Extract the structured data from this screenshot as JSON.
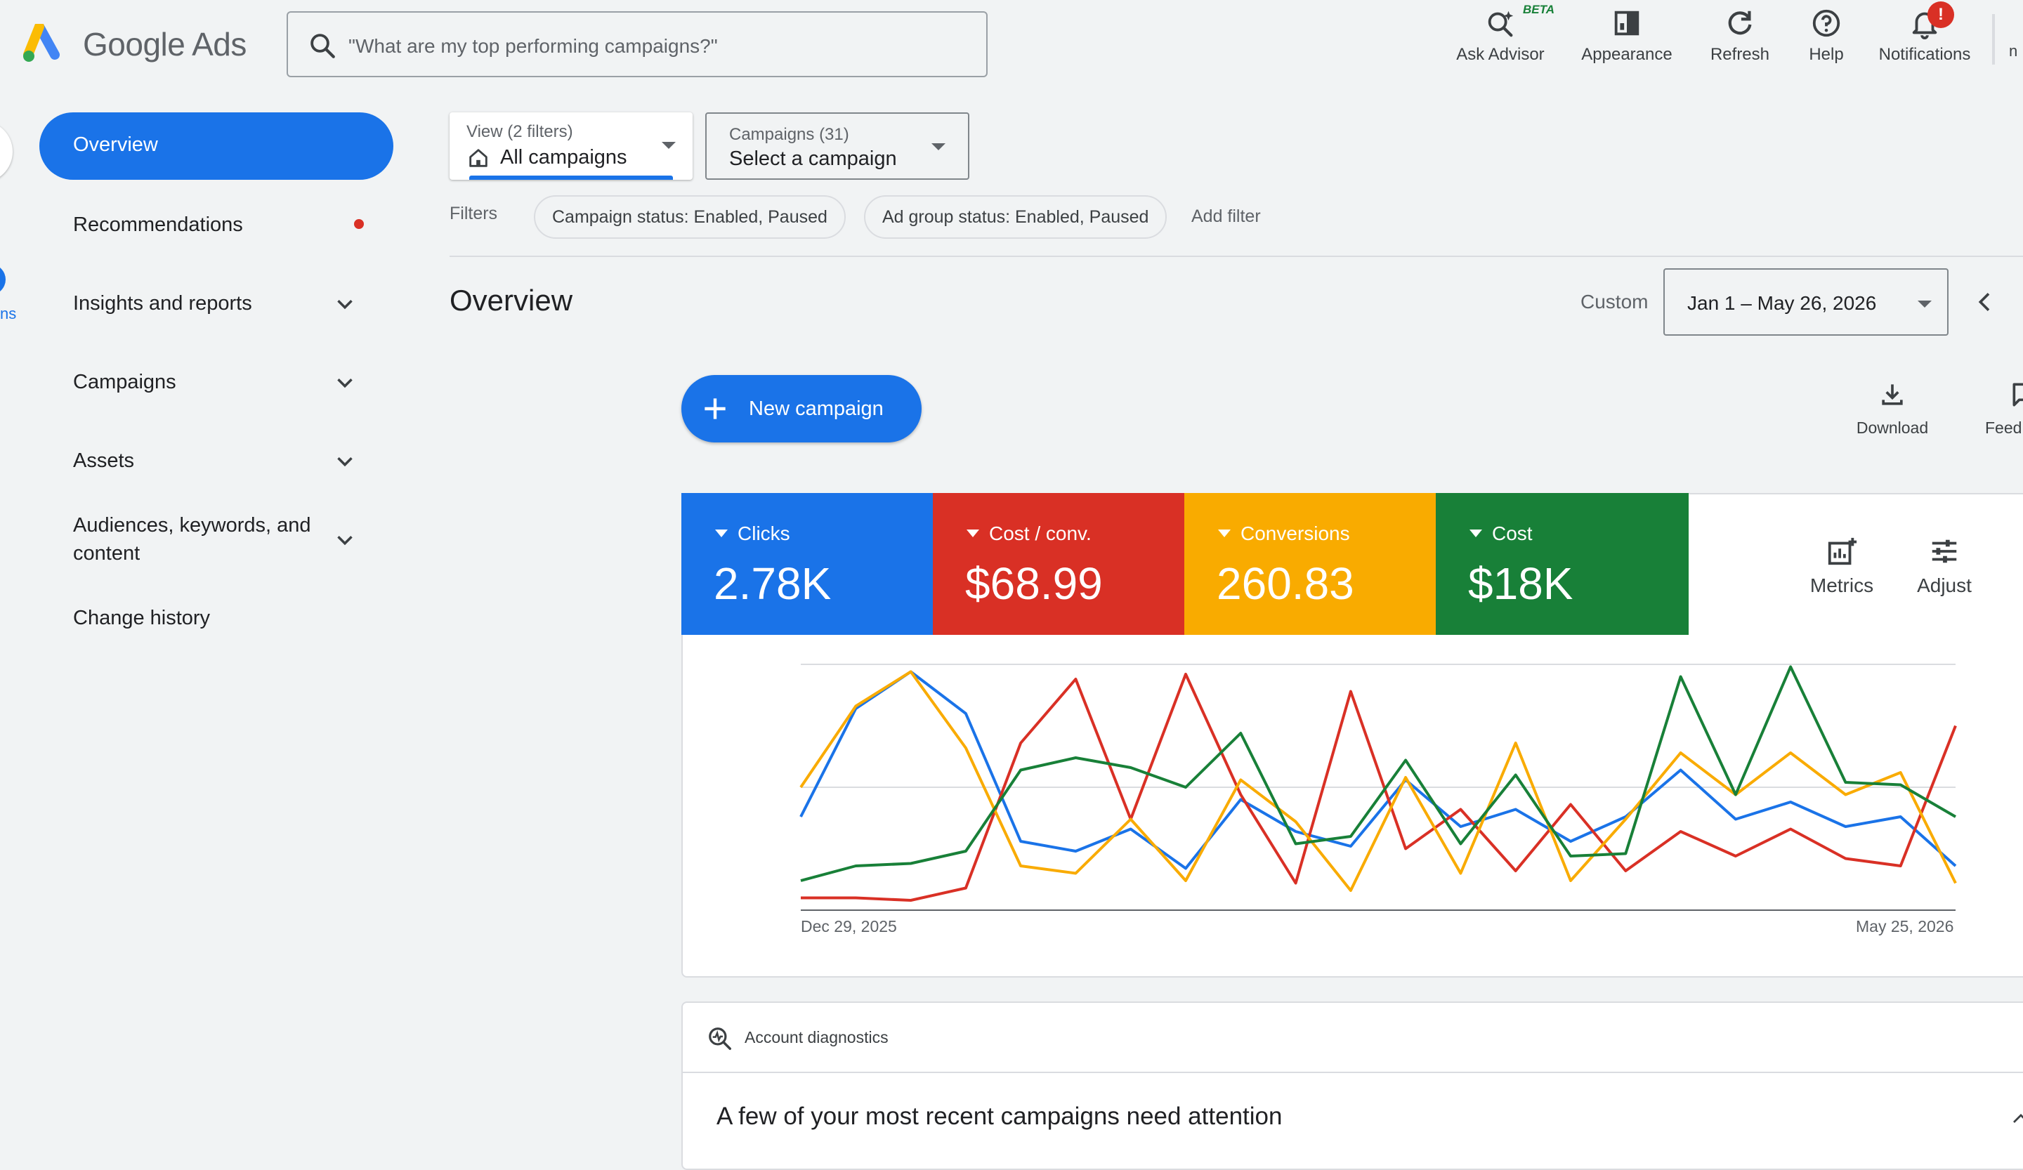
{
  "app": {
    "name": "Google Ads"
  },
  "search": {
    "placeholder": "\"What are my top performing campaigns?\""
  },
  "toolbar": {
    "ask_advisor": "Ask Advisor",
    "beta": "BETA",
    "appearance": "Appearance",
    "refresh": "Refresh",
    "help": "Help",
    "notifications": "Notifications",
    "notifications_badge": "!",
    "overflow_fragment": "n"
  },
  "left_rail": {
    "fragment_text": "ns"
  },
  "nav": {
    "items": [
      {
        "label": "Overview",
        "active": true
      },
      {
        "label": "Recommendations",
        "has_dot": true
      },
      {
        "label": "Insights and reports",
        "expandable": true
      },
      {
        "label": "Campaigns",
        "expandable": true
      },
      {
        "label": "Assets",
        "expandable": true
      },
      {
        "label": "Audiences, keywords, and content",
        "expandable": true
      },
      {
        "label": "Change history"
      }
    ]
  },
  "view_selector": {
    "sublabel": "View (2 filters)",
    "value": "All campaigns"
  },
  "campaign_selector": {
    "sublabel": "Campaigns (31)",
    "value": "Select a campaign"
  },
  "filters": {
    "label": "Filters",
    "chips": [
      "Campaign status: Enabled, Paused",
      "Ad group status: Enabled, Paused"
    ],
    "add_label": "Add filter"
  },
  "overview": {
    "title": "Overview",
    "date_mode": "Custom",
    "date_range": "Jan 1 – May 26, 2026",
    "new_campaign_label": "New campaign",
    "download_label": "Download",
    "feedback_fragment": "Feed"
  },
  "metrics": {
    "tiles": [
      {
        "name": "Clicks",
        "value": "2.78K",
        "color": "#1a73e8"
      },
      {
        "name": "Cost / conv.",
        "value": "$68.99",
        "color": "#d93025"
      },
      {
        "name": "Conversions",
        "value": "260.83",
        "color": "#f9ab00"
      },
      {
        "name": "Cost",
        "value": "$18K",
        "color": "#188038"
      }
    ],
    "metrics_label": "Metrics",
    "adjust_label": "Adjust"
  },
  "chart_data": {
    "type": "line",
    "x_start_label": "Dec 29, 2025",
    "x_end_label": "May 25, 2026",
    "grid": true,
    "series": [
      {
        "name": "Clicks",
        "color": "#1a73e8",
        "values": [
          0.38,
          0.82,
          0.97,
          0.8,
          0.28,
          0.24,
          0.33,
          0.17,
          0.45,
          0.32,
          0.26,
          0.53,
          0.34,
          0.41,
          0.28,
          0.38,
          0.57,
          0.37,
          0.44,
          0.34,
          0.38,
          0.18
        ]
      },
      {
        "name": "Cost / conv.",
        "color": "#d93025",
        "values": [
          0.05,
          0.05,
          0.04,
          0.09,
          0.68,
          0.94,
          0.37,
          0.96,
          0.47,
          0.11,
          0.89,
          0.25,
          0.41,
          0.16,
          0.43,
          0.16,
          0.32,
          0.22,
          0.33,
          0.21,
          0.18,
          0.75
        ]
      },
      {
        "name": "Conversions",
        "color": "#f9ab00",
        "values": [
          0.5,
          0.83,
          0.97,
          0.66,
          0.18,
          0.15,
          0.37,
          0.12,
          0.53,
          0.36,
          0.08,
          0.54,
          0.15,
          0.68,
          0.12,
          0.37,
          0.64,
          0.47,
          0.64,
          0.47,
          0.56,
          0.11
        ]
      },
      {
        "name": "Cost",
        "color": "#188038",
        "values": [
          0.12,
          0.18,
          0.19,
          0.24,
          0.57,
          0.62,
          0.58,
          0.5,
          0.72,
          0.27,
          0.3,
          0.61,
          0.27,
          0.55,
          0.22,
          0.23,
          0.95,
          0.47,
          0.99,
          0.52,
          0.51,
          0.38
        ]
      }
    ]
  },
  "diagnostics": {
    "header": "Account diagnostics",
    "message": "A few of your most recent campaigns need attention"
  }
}
